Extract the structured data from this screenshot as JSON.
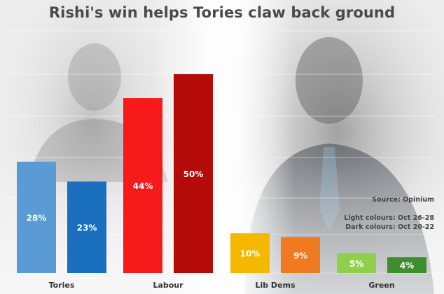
{
  "title": "Rishi's win helps Tories claw back ground",
  "source": "Source: Opinium",
  "legend": {
    "light": "Light colours: Oct 26-28",
    "dark": "Dark colours: Oct 20-22"
  },
  "chart_data": {
    "type": "bar",
    "title": "Rishi's win helps Tories claw back ground",
    "categories": [
      "Tories",
      "Labour",
      "Lib Dems",
      "Green"
    ],
    "series": [
      {
        "name": "Oct 26-28",
        "values": [
          28,
          44,
          10,
          5
        ],
        "colors": [
          "#5b9bd5",
          "#f71a1a",
          "#f5b800",
          "#8fd04a"
        ]
      },
      {
        "name": "Oct 20-22",
        "values": [
          23,
          50,
          9,
          4
        ],
        "colors": [
          "#1a6fbf",
          "#b40a0a",
          "#ef7a1f",
          "#3e8e2f"
        ]
      }
    ],
    "value_suffix": "%",
    "ylim": [
      0,
      50
    ],
    "grid": true,
    "legend_position": "right"
  }
}
